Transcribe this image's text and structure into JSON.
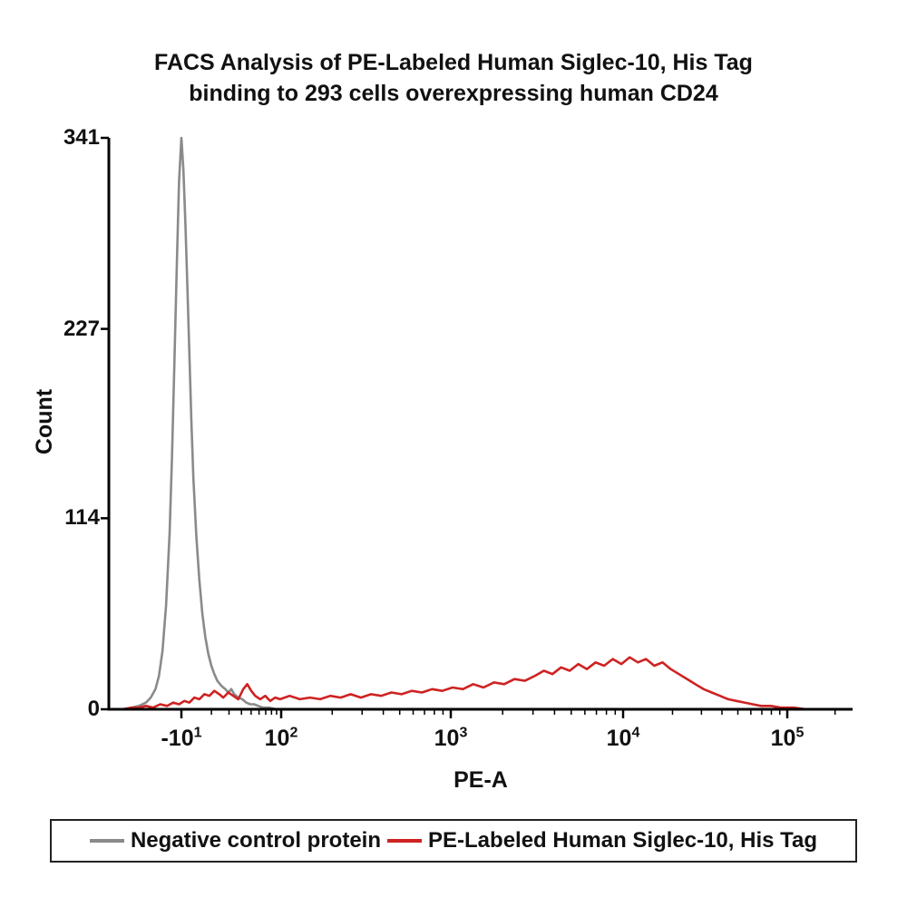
{
  "chart": {
    "title_line1": "FACS Analysis of PE-Labeled Human Siglec-10, His Tag",
    "title_line2": "binding to 293 cells overexpressing human CD24",
    "xlabel": "PE-A",
    "ylabel": "Count",
    "y_ticks": [
      0,
      114,
      227,
      341
    ],
    "x_ticks": [
      {
        "log": 1,
        "base": "-10",
        "exp": "1"
      },
      {
        "log": 2,
        "base": "10",
        "exp": "2"
      },
      {
        "log": 3,
        "base": "10",
        "exp": "3"
      },
      {
        "log": 4,
        "base": "10",
        "exp": "4"
      },
      {
        "log": 5,
        "base": "10",
        "exp": "5"
      }
    ]
  },
  "chart_data": {
    "type": "line",
    "title": "FACS Analysis of PE-Labeled Human Siglec-10, His Tag binding to 293 cells overexpressing human CD24",
    "xlabel": "PE-A",
    "ylabel": "Count",
    "x_scale": "log10 (biexponential flow-cytometry axis)",
    "xlim_log10": [
      0.4,
      5.4
    ],
    "ylim": [
      0,
      341
    ],
    "grid": false,
    "legend_position": "bottom",
    "series": [
      {
        "name": "Negative control protein",
        "color": "#8a8a8a",
        "points": [
          [
            0.5,
            0
          ],
          [
            0.58,
            1
          ],
          [
            0.64,
            2
          ],
          [
            0.7,
            4
          ],
          [
            0.74,
            7
          ],
          [
            0.78,
            12
          ],
          [
            0.81,
            20
          ],
          [
            0.84,
            35
          ],
          [
            0.87,
            62
          ],
          [
            0.9,
            105
          ],
          [
            0.92,
            150
          ],
          [
            0.94,
            205
          ],
          [
            0.96,
            262
          ],
          [
            0.98,
            315
          ],
          [
            1.0,
            341
          ],
          [
            1.02,
            322
          ],
          [
            1.04,
            290
          ],
          [
            1.06,
            252
          ],
          [
            1.08,
            212
          ],
          [
            1.1,
            172
          ],
          [
            1.12,
            138
          ],
          [
            1.15,
            103
          ],
          [
            1.18,
            77
          ],
          [
            1.21,
            57
          ],
          [
            1.24,
            43
          ],
          [
            1.27,
            33
          ],
          [
            1.3,
            26
          ],
          [
            1.33,
            21
          ],
          [
            1.36,
            17
          ],
          [
            1.4,
            14
          ],
          [
            1.44,
            12
          ],
          [
            1.47,
            10
          ],
          [
            1.5,
            12
          ],
          [
            1.53,
            9
          ],
          [
            1.57,
            7
          ],
          [
            1.61,
            6
          ],
          [
            1.65,
            4
          ],
          [
            1.69,
            3
          ],
          [
            1.73,
            3
          ],
          [
            1.77,
            2
          ],
          [
            1.82,
            1
          ],
          [
            1.88,
            1
          ],
          [
            1.95,
            0
          ],
          [
            2.05,
            0
          ],
          [
            2.2,
            0
          ]
        ]
      },
      {
        "name": "PE-Labeled Human Siglec-10, His Tag",
        "color": "#cf2222",
        "points": [
          [
            0.5,
            0
          ],
          [
            0.58,
            1
          ],
          [
            0.64,
            1
          ],
          [
            0.7,
            2
          ],
          [
            0.76,
            1
          ],
          [
            0.82,
            3
          ],
          [
            0.88,
            2
          ],
          [
            0.93,
            4
          ],
          [
            0.98,
            3
          ],
          [
            1.03,
            5
          ],
          [
            1.08,
            4
          ],
          [
            1.13,
            7
          ],
          [
            1.18,
            6
          ],
          [
            1.23,
            9
          ],
          [
            1.28,
            8
          ],
          [
            1.33,
            11
          ],
          [
            1.38,
            9
          ],
          [
            1.42,
            7
          ],
          [
            1.47,
            10
          ],
          [
            1.52,
            8
          ],
          [
            1.57,
            6
          ],
          [
            1.62,
            12
          ],
          [
            1.66,
            15
          ],
          [
            1.7,
            11
          ],
          [
            1.74,
            8
          ],
          [
            1.79,
            6
          ],
          [
            1.84,
            8
          ],
          [
            1.89,
            5
          ],
          [
            1.94,
            7
          ],
          [
            1.99,
            6
          ],
          [
            2.05,
            8
          ],
          [
            2.11,
            6
          ],
          [
            2.17,
            7
          ],
          [
            2.23,
            6
          ],
          [
            2.29,
            8
          ],
          [
            2.35,
            7
          ],
          [
            2.41,
            9
          ],
          [
            2.47,
            7
          ],
          [
            2.53,
            9
          ],
          [
            2.59,
            8
          ],
          [
            2.65,
            10
          ],
          [
            2.71,
            9
          ],
          [
            2.77,
            11
          ],
          [
            2.83,
            10
          ],
          [
            2.89,
            12
          ],
          [
            2.95,
            11
          ],
          [
            3.01,
            13
          ],
          [
            3.07,
            12
          ],
          [
            3.13,
            15
          ],
          [
            3.19,
            13
          ],
          [
            3.25,
            16
          ],
          [
            3.31,
            15
          ],
          [
            3.37,
            18
          ],
          [
            3.43,
            17
          ],
          [
            3.49,
            20
          ],
          [
            3.54,
            23
          ],
          [
            3.59,
            21
          ],
          [
            3.64,
            25
          ],
          [
            3.69,
            23
          ],
          [
            3.74,
            27
          ],
          [
            3.79,
            24
          ],
          [
            3.84,
            28
          ],
          [
            3.89,
            26
          ],
          [
            3.94,
            30
          ],
          [
            3.99,
            27
          ],
          [
            4.04,
            31
          ],
          [
            4.09,
            28
          ],
          [
            4.14,
            30
          ],
          [
            4.19,
            26
          ],
          [
            4.24,
            28
          ],
          [
            4.29,
            24
          ],
          [
            4.34,
            21
          ],
          [
            4.39,
            18
          ],
          [
            4.44,
            15
          ],
          [
            4.49,
            12
          ],
          [
            4.54,
            10
          ],
          [
            4.59,
            8
          ],
          [
            4.64,
            6
          ],
          [
            4.69,
            5
          ],
          [
            4.74,
            4
          ],
          [
            4.79,
            3
          ],
          [
            4.84,
            2
          ],
          [
            4.9,
            2
          ],
          [
            4.96,
            1
          ],
          [
            5.04,
            1
          ],
          [
            5.12,
            0
          ],
          [
            5.25,
            0
          ],
          [
            5.35,
            0
          ]
        ]
      }
    ]
  },
  "legend": {
    "items": [
      {
        "label": "Negative control protein",
        "color": "#8a8a8a"
      },
      {
        "label": "PE-Labeled Human Siglec-10, His Tag",
        "color": "#cf2222"
      }
    ]
  }
}
